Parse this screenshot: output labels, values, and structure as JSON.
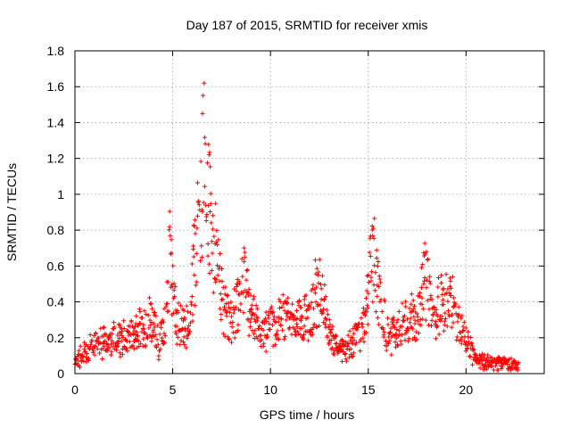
{
  "chart_data": {
    "type": "scatter",
    "title": "Day 187 of 2015, SRMTID for receiver xmis",
    "xlabel": "GPS time / hours",
    "ylabel": "SRMTID / TECUs",
    "xlim": [
      0,
      24
    ],
    "ylim": [
      0,
      1.8
    ],
    "xticks": [
      0,
      5,
      10,
      15,
      20
    ],
    "xtick_labels": [
      "0",
      "5",
      "10",
      "15",
      "20"
    ],
    "yticks": [
      0,
      0.2,
      0.4,
      0.6,
      0.8,
      1.0,
      1.2,
      1.4,
      1.6,
      1.8
    ],
    "ytick_labels": [
      "0",
      "0.2",
      "0.4",
      "0.6",
      "0.8",
      "1",
      "1.2",
      "1.4",
      "1.6",
      "1.8"
    ],
    "grid": true,
    "marker": "+",
    "color": "#ff0000",
    "series": [
      {
        "name": "SRMTID",
        "envelope": [
          [
            0.0,
            0.07
          ],
          [
            0.5,
            0.13
          ],
          [
            1.0,
            0.17
          ],
          [
            1.5,
            0.18
          ],
          [
            2.0,
            0.2
          ],
          [
            2.5,
            0.21
          ],
          [
            3.0,
            0.22
          ],
          [
            3.5,
            0.28
          ],
          [
            4.0,
            0.33
          ],
          [
            4.3,
            0.18
          ],
          [
            4.6,
            0.3
          ],
          [
            4.85,
            0.7
          ],
          [
            5.2,
            0.28
          ],
          [
            5.5,
            0.3
          ],
          [
            5.9,
            0.28
          ],
          [
            6.1,
            0.7
          ],
          [
            6.4,
            0.95
          ],
          [
            6.6,
            1.3
          ],
          [
            6.9,
            0.95
          ],
          [
            7.2,
            0.75
          ],
          [
            7.5,
            0.45
          ],
          [
            8.0,
            0.3
          ],
          [
            8.5,
            0.45
          ],
          [
            8.7,
            0.55
          ],
          [
            9.0,
            0.35
          ],
          [
            9.5,
            0.22
          ],
          [
            10.0,
            0.28
          ],
          [
            10.5,
            0.3
          ],
          [
            11.0,
            0.4
          ],
          [
            11.5,
            0.32
          ],
          [
            12.0,
            0.3
          ],
          [
            12.3,
            0.45
          ],
          [
            12.6,
            0.55
          ],
          [
            12.9,
            0.3
          ],
          [
            13.3,
            0.15
          ],
          [
            13.8,
            0.13
          ],
          [
            14.3,
            0.2
          ],
          [
            14.8,
            0.3
          ],
          [
            15.2,
            0.7
          ],
          [
            15.6,
            0.4
          ],
          [
            16.0,
            0.22
          ],
          [
            16.5,
            0.25
          ],
          [
            17.0,
            0.3
          ],
          [
            17.5,
            0.35
          ],
          [
            17.9,
            0.6
          ],
          [
            18.3,
            0.35
          ],
          [
            18.8,
            0.4
          ],
          [
            19.2,
            0.45
          ],
          [
            19.7,
            0.28
          ],
          [
            20.0,
            0.2
          ],
          [
            20.5,
            0.08
          ],
          [
            21.0,
            0.06
          ],
          [
            21.5,
            0.06
          ],
          [
            22.0,
            0.05
          ],
          [
            22.7,
            0.05
          ]
        ]
      }
    ]
  }
}
